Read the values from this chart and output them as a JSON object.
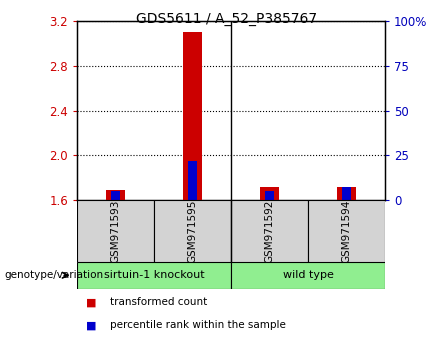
{
  "title": "GDS5611 / A_52_P385767",
  "samples": [
    "GSM971593",
    "GSM971595",
    "GSM971592",
    "GSM971594"
  ],
  "group_spans": [
    [
      0,
      1,
      "sirtuin-1 knockout"
    ],
    [
      2,
      3,
      "wild type"
    ]
  ],
  "bar_color_red": "#CC0000",
  "bar_color_blue": "#0000CC",
  "transformed_counts": [
    1.69,
    3.1,
    1.72,
    1.72
  ],
  "percentile_ranks": [
    5,
    22,
    5,
    7
  ],
  "ylim_left": [
    1.6,
    3.2
  ],
  "yticks_left": [
    1.6,
    2.0,
    2.4,
    2.8,
    3.2
  ],
  "yticks_right": [
    0,
    25,
    50,
    75,
    100
  ],
  "ylim_right": [
    0,
    100
  ],
  "sample_box_color": "#d3d3d3",
  "group_box_color": "#90EE90",
  "ylabel_left_color": "#CC0000",
  "ylabel_right_color": "#0000BB",
  "legend_red_label": "transformed count",
  "legend_blue_label": "percentile rank within the sample",
  "genotype_label": "genotype/variation",
  "red_bar_width": 0.25,
  "blue_bar_width": 0.12
}
